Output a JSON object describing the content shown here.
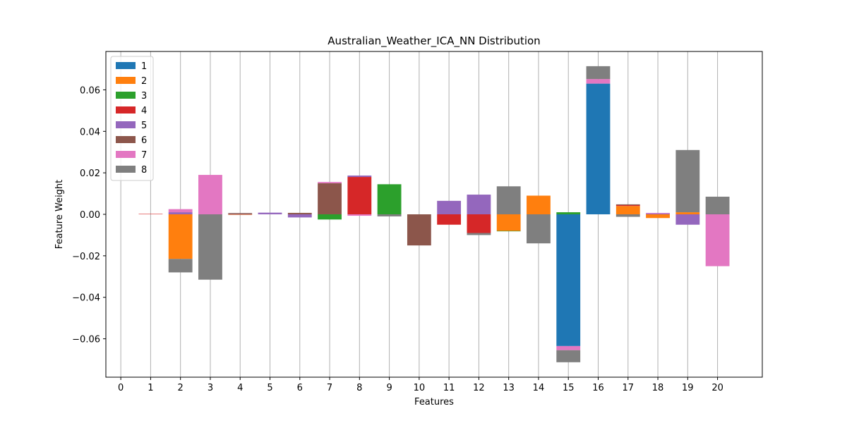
{
  "chart_data": {
    "type": "bar",
    "stacked": true,
    "title": "Australian_Weather_ICA_NN Distribution",
    "xlabel": "Features",
    "ylabel": "Feature Weight",
    "xlim": [
      -0.5,
      21.5
    ],
    "ylim": [
      -0.0785,
      0.0785
    ],
    "categories": [
      "0",
      "1",
      "2",
      "3",
      "4",
      "5",
      "6",
      "7",
      "8",
      "9",
      "10",
      "11",
      "12",
      "13",
      "14",
      "15",
      "16",
      "17",
      "18",
      "19",
      "20"
    ],
    "x": [
      0,
      1,
      2,
      3,
      4,
      5,
      6,
      7,
      8,
      9,
      10,
      11,
      12,
      13,
      14,
      15,
      16,
      17,
      18,
      19,
      20
    ],
    "yticks": [
      -0.06,
      -0.04,
      -0.02,
      0.0,
      0.02,
      0.04,
      0.06
    ],
    "ytick_labels": [
      "−0.06",
      "−0.04",
      "−0.02",
      "0.00",
      "0.02",
      "0.04",
      "0.06"
    ],
    "grid": "vertical",
    "legend_position": "top-left",
    "series": [
      {
        "name": "1",
        "color": "#1f77b4",
        "values": [
          0,
          0,
          0,
          0,
          0,
          0,
          0,
          0,
          0,
          0,
          0,
          0,
          0,
          0,
          0,
          -0.0635,
          0.063,
          0,
          0,
          0,
          0
        ]
      },
      {
        "name": "2",
        "color": "#ff7f0e",
        "values": [
          0,
          0,
          -0.0215,
          0,
          -0.0003,
          0,
          0,
          0,
          0,
          0,
          0,
          0,
          0,
          -0.008,
          0.009,
          0,
          0,
          0.004,
          -0.0018,
          0.001,
          0
        ]
      },
      {
        "name": "3",
        "color": "#2ca02c",
        "values": [
          0,
          0,
          0,
          0,
          0,
          0,
          0,
          -0.0025,
          0,
          0.0145,
          0,
          0,
          0,
          -0.0002,
          0,
          0.001,
          0,
          0,
          0,
          0,
          0
        ]
      },
      {
        "name": "4",
        "color": "#d62728",
        "values": [
          0,
          0.0002,
          0,
          0,
          0,
          0,
          0,
          0,
          0.018,
          0,
          0,
          -0.005,
          -0.009,
          0,
          0,
          0,
          0,
          0.0004,
          0,
          0,
          0
        ]
      },
      {
        "name": "5",
        "color": "#9467bd",
        "values": [
          0,
          0,
          0.001,
          0,
          0.0001,
          0.0008,
          -0.0015,
          0,
          0.0007,
          0,
          0,
          0.0065,
          0.0095,
          0,
          0,
          0,
          0,
          0,
          0.0004,
          -0.005,
          0
        ]
      },
      {
        "name": "6",
        "color": "#8c564b",
        "values": [
          0,
          0,
          0,
          0,
          0.0005,
          0,
          0.0007,
          0.015,
          0,
          0,
          -0.015,
          0,
          0,
          0,
          0,
          0,
          0,
          0.0004,
          0,
          0,
          0
        ]
      },
      {
        "name": "7",
        "color": "#e377c2",
        "values": [
          0,
          0,
          0.0015,
          0.019,
          0,
          0,
          0,
          0.0006,
          -0.0007,
          0,
          0,
          0,
          0,
          0,
          0,
          -0.002,
          0.0022,
          0,
          0.0003,
          0,
          -0.025
        ]
      },
      {
        "name": "8",
        "color": "#7f7f7f",
        "values": [
          0,
          0,
          -0.0065,
          -0.0315,
          0,
          0,
          0,
          0,
          0,
          -0.001,
          0,
          0,
          -0.001,
          0.0135,
          -0.014,
          -0.0058,
          0.0062,
          -0.0012,
          0,
          0.03,
          0.0085
        ]
      }
    ]
  }
}
